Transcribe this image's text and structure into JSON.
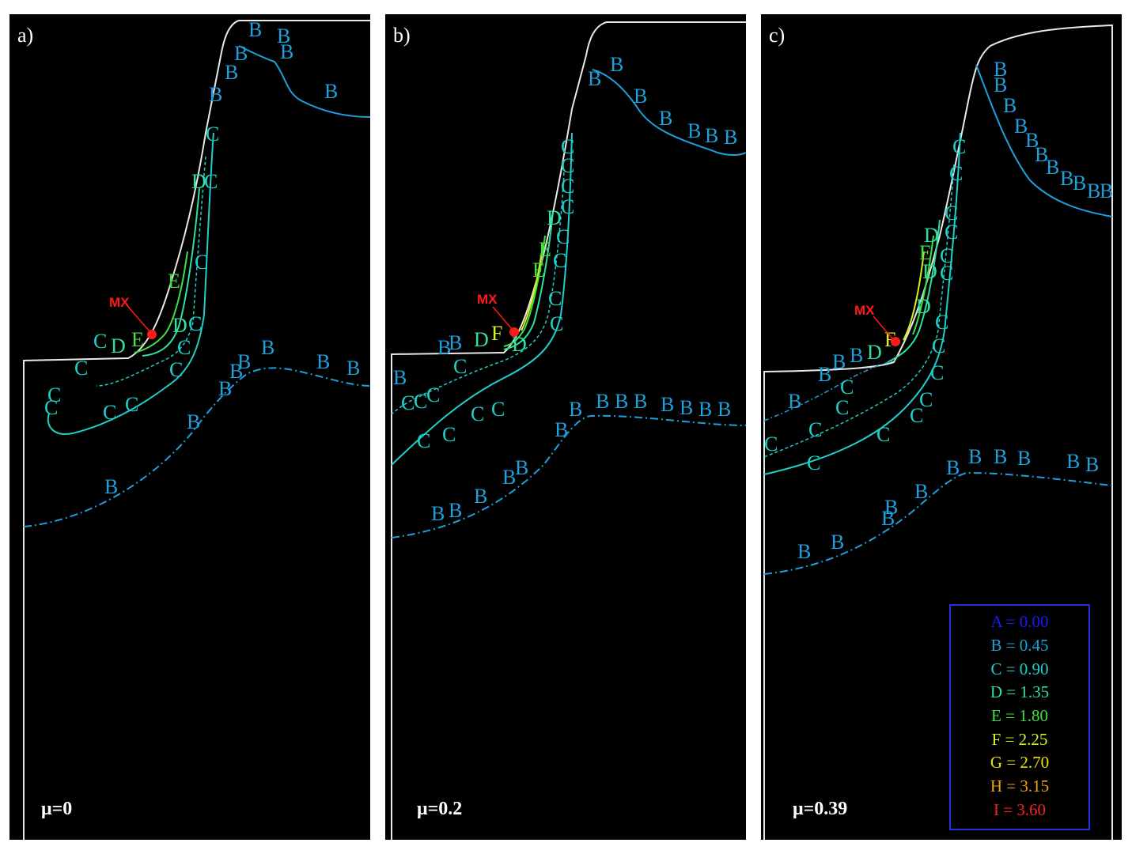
{
  "panels": [
    {
      "letter": "a)",
      "mu": "μ=0"
    },
    {
      "letter": "b)",
      "mu": "μ=0.2"
    },
    {
      "letter": "c)",
      "mu": "μ=0.39"
    }
  ],
  "marker_label": "MX",
  "colors": {
    "panel_background": "#000000",
    "boundary": "#e8e8e8",
    "marker": "#ff1a1a",
    "B": "#1ea0dc",
    "C": "#20d0c8",
    "D": "#30e0a0",
    "E": "#40e040",
    "F": "#d8f020",
    "legend_border": "#2233dd"
  },
  "legend": [
    {
      "text": "A = 0.00",
      "color": "#1a1aff"
    },
    {
      "text": "B = 0.45",
      "color": "#1ea0dc"
    },
    {
      "text": "C = 0.90",
      "color": "#20d0c8"
    },
    {
      "text": "D = 1.35",
      "color": "#30e0a0"
    },
    {
      "text": "E = 1.80",
      "color": "#40e040"
    },
    {
      "text": "F = 2.25",
      "color": "#d8f020"
    },
    {
      "text": "G = 2.70",
      "color": "#f0e000"
    },
    {
      "text": "H = 3.15",
      "color": "#f0a010"
    },
    {
      "text": "I = 3.60",
      "color": "#ff2020"
    }
  ]
}
